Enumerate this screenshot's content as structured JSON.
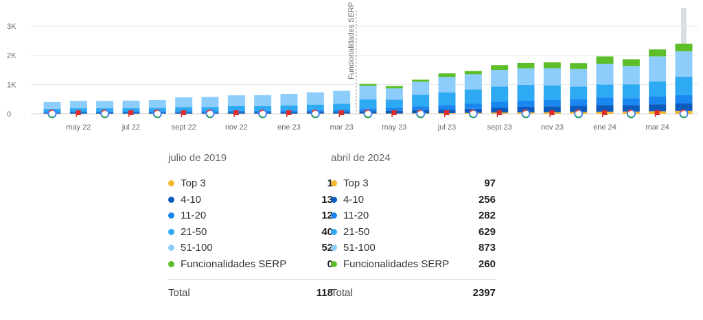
{
  "chart_data": {
    "type": "bar",
    "stacked": true,
    "categories": [
      "abr 22",
      "may 22",
      "jun 22",
      "jul 22",
      "ago 22",
      "sept 22",
      "oct 22",
      "nov 22",
      "dic 22",
      "ene 23",
      "feb 23",
      "mar 23",
      "abr 23",
      "may 23",
      "jun 23",
      "jul 23",
      "ago 23",
      "sept 23",
      "oct 23",
      "nov 23",
      "dic 23",
      "ene 24",
      "feb 24",
      "mar 24",
      "abr 24"
    ],
    "x_tick_labels": [
      "may 22",
      "jul 22",
      "sept 22",
      "nov 22",
      "ene 23",
      "mar 23",
      "may 23",
      "jul 23",
      "sept 23",
      "nov 23",
      "ene 24",
      "mar 24"
    ],
    "series": [
      {
        "name": "Top 3",
        "color": "#f4b72f",
        "values": [
          5,
          5,
          5,
          5,
          5,
          5,
          5,
          5,
          5,
          6,
          8,
          8,
          10,
          10,
          15,
          20,
          30,
          40,
          45,
          50,
          60,
          70,
          75,
          85,
          97
        ]
      },
      {
        "name": "4-10",
        "color": "#0b5bbf",
        "values": [
          25,
          30,
          30,
          30,
          32,
          35,
          35,
          40,
          40,
          45,
          50,
          55,
          80,
          90,
          110,
          120,
          140,
          170,
          190,
          200,
          210,
          230,
          220,
          240,
          256
        ]
      },
      {
        "name": "11-20",
        "color": "#1a86f0",
        "values": [
          40,
          45,
          45,
          45,
          48,
          50,
          50,
          55,
          55,
          60,
          65,
          70,
          90,
          100,
          130,
          160,
          180,
          200,
          210,
          220,
          230,
          250,
          240,
          260,
          282
        ]
      },
      {
        "name": "21-50",
        "color": "#2eaaf5",
        "values": [
          100,
          110,
          110,
          115,
          120,
          140,
          140,
          160,
          160,
          170,
          190,
          210,
          310,
          280,
          390,
          430,
          480,
          520,
          540,
          500,
          430,
          450,
          470,
          520,
          629
        ]
      },
      {
        "name": "51-100",
        "color": "#8ccdfb",
        "values": [
          230,
          250,
          250,
          255,
          265,
          330,
          345,
          370,
          375,
          400,
          420,
          440,
          470,
          390,
          450,
          530,
          520,
          570,
          570,
          590,
          600,
          710,
          630,
          855,
          873
        ]
      },
      {
        "name": "Funcionalidades SERP",
        "color": "#5cbf2a",
        "values": [
          0,
          0,
          0,
          0,
          0,
          0,
          0,
          0,
          0,
          0,
          0,
          0,
          60,
          80,
          70,
          120,
          110,
          160,
          180,
          200,
          200,
          250,
          230,
          240,
          260
        ]
      }
    ],
    "ylim": [
      0,
      3000
    ],
    "y_tick_labels": [
      "0",
      "1K",
      "2K",
      "3K"
    ],
    "y_tick_values": [
      0,
      1000,
      2000,
      3000
    ],
    "grid": true,
    "annotation": {
      "label": "Funcionalidades SERP",
      "at_category": "abr 23"
    },
    "highlight_category": "abr 24",
    "marker_icons": [
      "google-update-icon",
      "red-flag-icon"
    ]
  },
  "legends": [
    {
      "period": "julio de 2019",
      "items": [
        {
          "name": "Top 3",
          "value": "1",
          "color": "#f4b72f"
        },
        {
          "name": "4-10",
          "value": "13",
          "color": "#0b5bbf"
        },
        {
          "name": "11-20",
          "value": "12",
          "color": "#1a86f0"
        },
        {
          "name": "21-50",
          "value": "40",
          "color": "#2eaaf5"
        },
        {
          "name": "51-100",
          "value": "52",
          "color": "#8ccdfb"
        },
        {
          "name": "Funcionalidades SERP",
          "value": "0",
          "color": "#5cbf2a"
        }
      ],
      "total_label": "Total",
      "total_value": "118"
    },
    {
      "period": "abril de 2024",
      "items": [
        {
          "name": "Top 3",
          "value": "97",
          "color": "#f4b72f"
        },
        {
          "name": "4-10",
          "value": "256",
          "color": "#0b5bbf"
        },
        {
          "name": "11-20",
          "value": "282",
          "color": "#1a86f0"
        },
        {
          "name": "21-50",
          "value": "629",
          "color": "#2eaaf5"
        },
        {
          "name": "51-100",
          "value": "873",
          "color": "#8ccdfb"
        },
        {
          "name": "Funcionalidades SERP",
          "value": "260",
          "color": "#5cbf2a"
        }
      ],
      "total_label": "Total",
      "total_value": "2397"
    }
  ]
}
